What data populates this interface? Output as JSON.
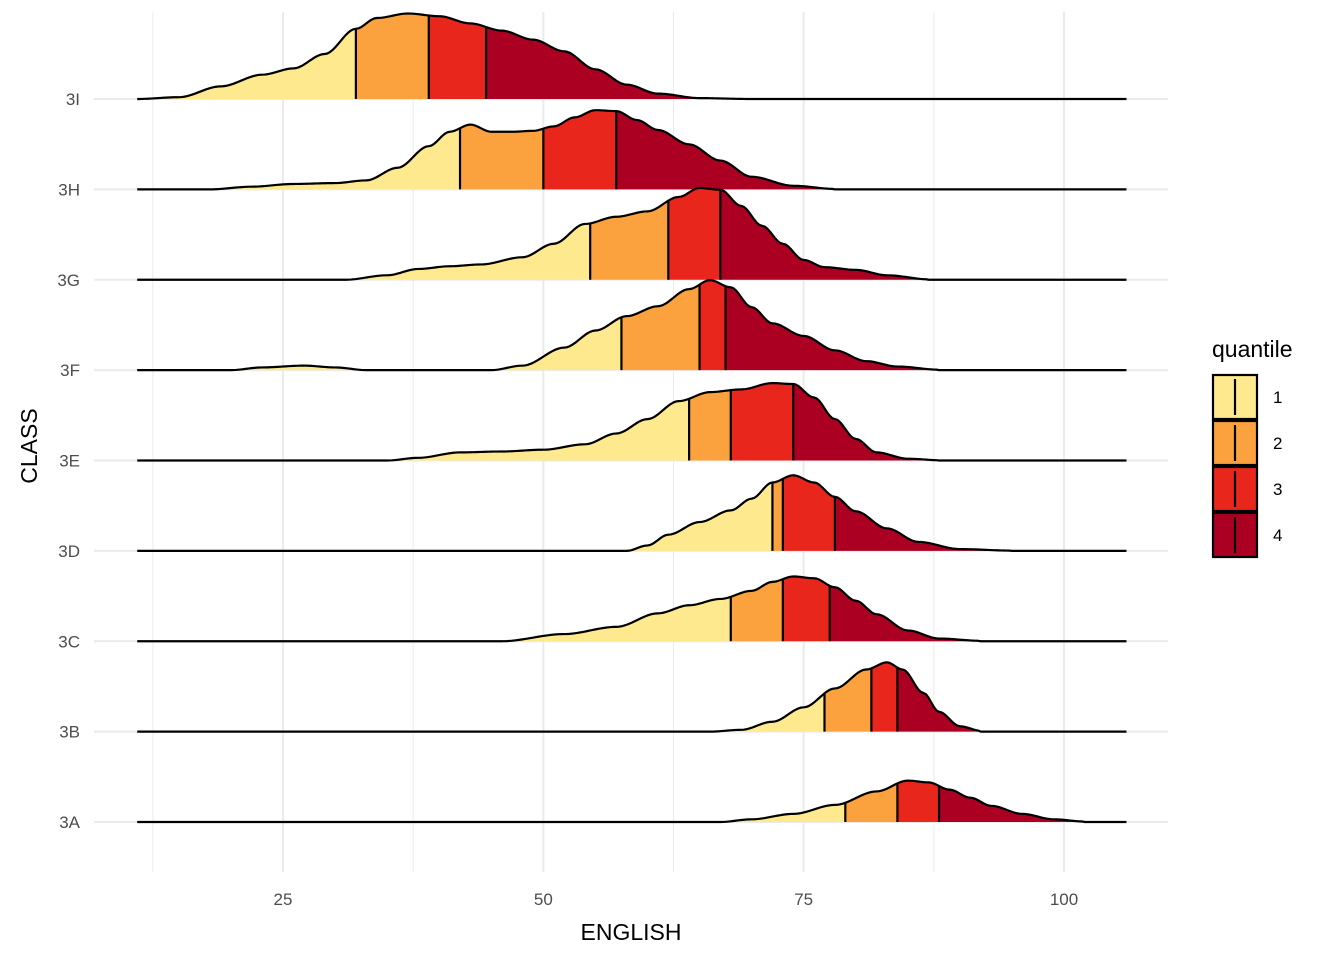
{
  "chart_data": {
    "type": "ridgeline",
    "xlabel": "ENGLISH",
    "ylabel": "CLASS",
    "xlim": [
      11,
      106
    ],
    "xticks": [
      25,
      50,
      75,
      100
    ],
    "x_tick_labels": [
      "25",
      "50",
      "75",
      "100"
    ],
    "grid": true,
    "legend": {
      "title": "quantile",
      "position": "right",
      "entries": [
        {
          "label": "1",
          "color": "#FEE98F"
        },
        {
          "label": "2",
          "color": "#FBA23F"
        },
        {
          "label": "3",
          "color": "#E8261C"
        },
        {
          "label": "4",
          "color": "#AC0022"
        }
      ]
    },
    "categories": [
      "3A",
      "3B",
      "3C",
      "3D",
      "3E",
      "3F",
      "3G",
      "3H",
      "3I"
    ],
    "series": [
      {
        "category": "3A",
        "quantiles": [
          79,
          84,
          88
        ],
        "density": [
          [
            67,
            0
          ],
          [
            70,
            0.03
          ],
          [
            74,
            0.09
          ],
          [
            78,
            0.19
          ],
          [
            82,
            0.34
          ],
          [
            85,
            0.46
          ],
          [
            87,
            0.44
          ],
          [
            89,
            0.36
          ],
          [
            91,
            0.27
          ],
          [
            93,
            0.18
          ],
          [
            96,
            0.09
          ],
          [
            99,
            0.03
          ],
          [
            102,
            0.005
          ]
        ]
      },
      {
        "category": "3B",
        "quantiles": [
          77,
          81.5,
          84
        ],
        "density": [
          [
            66,
            0
          ],
          [
            69,
            0.02
          ],
          [
            72,
            0.11
          ],
          [
            75,
            0.27
          ],
          [
            78,
            0.48
          ],
          [
            81,
            0.69
          ],
          [
            83,
            0.77
          ],
          [
            84.5,
            0.69
          ],
          [
            86.5,
            0.43
          ],
          [
            88,
            0.22
          ],
          [
            90,
            0.06
          ],
          [
            92,
            0.01
          ]
        ]
      },
      {
        "category": "3C",
        "quantiles": [
          68,
          73,
          77.5
        ],
        "density": [
          [
            46,
            0
          ],
          [
            52,
            0.08
          ],
          [
            57,
            0.16
          ],
          [
            61,
            0.31
          ],
          [
            64,
            0.4
          ],
          [
            67,
            0.47
          ],
          [
            70,
            0.56
          ],
          [
            72,
            0.66
          ],
          [
            74,
            0.72
          ],
          [
            76,
            0.7
          ],
          [
            78,
            0.6
          ],
          [
            80,
            0.45
          ],
          [
            82,
            0.3
          ],
          [
            85,
            0.12
          ],
          [
            88,
            0.03
          ],
          [
            92,
            0.005
          ]
        ]
      },
      {
        "category": "3D",
        "quantiles": [
          72,
          73,
          78
        ],
        "density": [
          [
            58,
            0
          ],
          [
            60,
            0.06
          ],
          [
            62,
            0.18
          ],
          [
            65,
            0.32
          ],
          [
            68,
            0.45
          ],
          [
            70,
            0.58
          ],
          [
            72,
            0.76
          ],
          [
            74,
            0.84
          ],
          [
            76,
            0.76
          ],
          [
            78,
            0.6
          ],
          [
            80,
            0.44
          ],
          [
            83,
            0.25
          ],
          [
            86,
            0.1
          ],
          [
            90,
            0.02
          ],
          [
            95,
            0.003
          ]
        ]
      },
      {
        "category": "3E",
        "quantiles": [
          64,
          68,
          74
        ],
        "density": [
          [
            35,
            0
          ],
          [
            38,
            0.03
          ],
          [
            42,
            0.09
          ],
          [
            46,
            0.1
          ],
          [
            50,
            0.12
          ],
          [
            54,
            0.18
          ],
          [
            57,
            0.3
          ],
          [
            60,
            0.46
          ],
          [
            63,
            0.66
          ],
          [
            66,
            0.76
          ],
          [
            69,
            0.79
          ],
          [
            72,
            0.86
          ],
          [
            74,
            0.85
          ],
          [
            76,
            0.7
          ],
          [
            78,
            0.46
          ],
          [
            80,
            0.24
          ],
          [
            82,
            0.09
          ],
          [
            85,
            0.02
          ],
          [
            88,
            0.003
          ]
        ]
      },
      {
        "category": "3F",
        "quantiles": [
          57.5,
          65,
          67.5
        ],
        "density": [
          [
            20,
            0
          ],
          [
            23,
            0.03
          ],
          [
            27,
            0.05
          ],
          [
            30,
            0.03
          ],
          [
            33,
            0
          ],
          [
            45,
            0
          ],
          [
            48,
            0.05
          ],
          [
            52,
            0.25
          ],
          [
            55,
            0.44
          ],
          [
            58,
            0.6
          ],
          [
            61,
            0.71
          ],
          [
            64,
            0.9
          ],
          [
            66,
            1.0
          ],
          [
            68,
            0.92
          ],
          [
            70,
            0.7
          ],
          [
            72,
            0.52
          ],
          [
            75,
            0.38
          ],
          [
            78,
            0.22
          ],
          [
            81,
            0.1
          ],
          [
            84,
            0.04
          ],
          [
            88,
            0.005
          ]
        ]
      },
      {
        "category": "3G",
        "quantiles": [
          54.5,
          62,
          67
        ],
        "density": [
          [
            31,
            0
          ],
          [
            35,
            0.05
          ],
          [
            38,
            0.12
          ],
          [
            41,
            0.15
          ],
          [
            44,
            0.17
          ],
          [
            48,
            0.25
          ],
          [
            51,
            0.4
          ],
          [
            54,
            0.62
          ],
          [
            57,
            0.7
          ],
          [
            60,
            0.76
          ],
          [
            63,
            0.92
          ],
          [
            65,
            1.02
          ],
          [
            67,
            1.0
          ],
          [
            69,
            0.82
          ],
          [
            71,
            0.6
          ],
          [
            73,
            0.4
          ],
          [
            75,
            0.22
          ],
          [
            77,
            0.14
          ],
          [
            80,
            0.11
          ],
          [
            83,
            0.05
          ],
          [
            87,
            0.005
          ]
        ]
      },
      {
        "category": "3H",
        "quantiles": [
          42,
          50,
          57
        ],
        "density": [
          [
            18,
            0
          ],
          [
            22,
            0.03
          ],
          [
            26,
            0.06
          ],
          [
            30,
            0.07
          ],
          [
            33,
            0.1
          ],
          [
            36,
            0.24
          ],
          [
            39,
            0.48
          ],
          [
            41,
            0.64
          ],
          [
            43,
            0.72
          ],
          [
            45,
            0.64
          ],
          [
            47,
            0.64
          ],
          [
            49,
            0.65
          ],
          [
            51,
            0.7
          ],
          [
            53,
            0.8
          ],
          [
            55,
            0.88
          ],
          [
            57,
            0.87
          ],
          [
            59,
            0.77
          ],
          [
            61,
            0.66
          ],
          [
            64,
            0.5
          ],
          [
            67,
            0.32
          ],
          [
            70,
            0.14
          ],
          [
            74,
            0.04
          ],
          [
            78,
            0.005
          ]
        ]
      },
      {
        "category": "3I",
        "quantiles": [
          32,
          39,
          44.5
        ],
        "density": [
          [
            11,
            0
          ],
          [
            15,
            0.02
          ],
          [
            19,
            0.14
          ],
          [
            23,
            0.27
          ],
          [
            26,
            0.34
          ],
          [
            29,
            0.5
          ],
          [
            32,
            0.78
          ],
          [
            34,
            0.9
          ],
          [
            37,
            0.95
          ],
          [
            40,
            0.92
          ],
          [
            43,
            0.84
          ],
          [
            46,
            0.76
          ],
          [
            49,
            0.66
          ],
          [
            52,
            0.53
          ],
          [
            55,
            0.33
          ],
          [
            58,
            0.16
          ],
          [
            61,
            0.06
          ],
          [
            65,
            0.01
          ],
          [
            70,
            0
          ]
        ]
      }
    ]
  }
}
